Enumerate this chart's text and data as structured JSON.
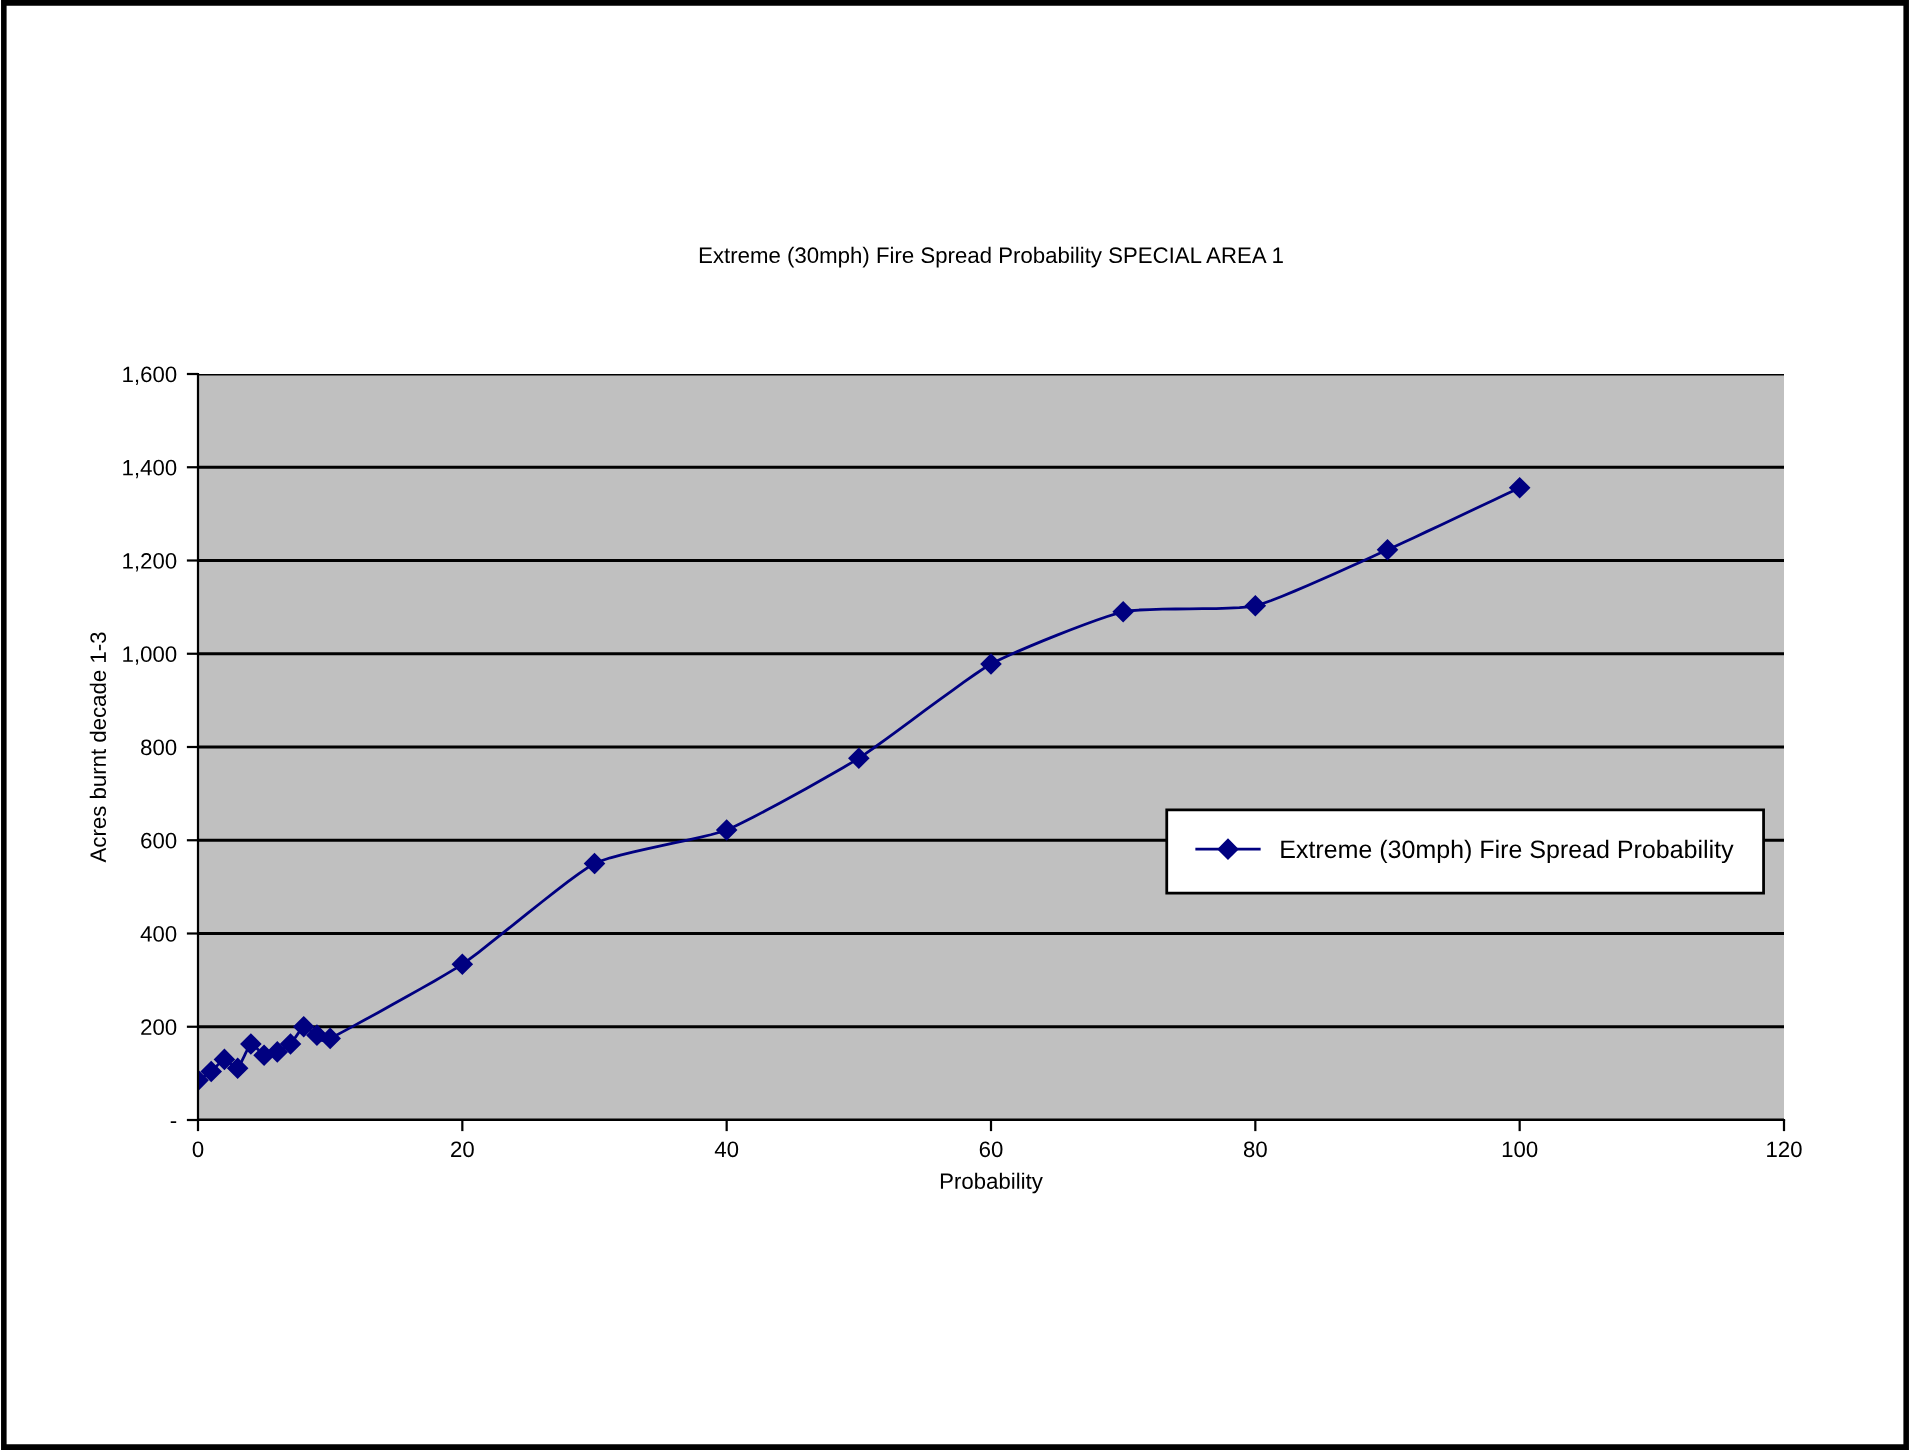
{
  "chart_data": {
    "type": "line",
    "title": "Extreme (30mph) Fire Spread Probability SPECIAL AREA 1",
    "xlabel": "Probability",
    "ylabel": "Acres burnt decade 1-3",
    "x": [
      0,
      1,
      2,
      3,
      4,
      5,
      6,
      7,
      8,
      9,
      10,
      20,
      30,
      40,
      50,
      60,
      70,
      80,
      90,
      100
    ],
    "series": [
      {
        "name": "Extreme (30mph) Fire Spread Probability",
        "color": "#000080",
        "values": [
          85,
          104,
          130,
          111,
          163,
          139,
          146,
          163,
          200,
          182,
          175,
          334,
          550,
          622,
          776,
          978,
          1090,
          1103,
          1223,
          1356
        ]
      }
    ],
    "xlim": [
      0,
      120
    ],
    "xticks": [
      0,
      20,
      40,
      60,
      80,
      100,
      120
    ],
    "ylim": [
      0,
      1600
    ],
    "yticks": [
      {
        "value": 0,
        "label": "-"
      },
      {
        "value": 200,
        "label": "200"
      },
      {
        "value": 400,
        "label": "400"
      },
      {
        "value": 600,
        "label": "600"
      },
      {
        "value": 800,
        "label": "800"
      },
      {
        "value": 1000,
        "label": "1,000"
      },
      {
        "value": 1200,
        "label": "1,200"
      },
      {
        "value": 1400,
        "label": "1,400"
      },
      {
        "value": 1600,
        "label": "1,600"
      }
    ],
    "grid": "y",
    "legend": "right",
    "marker": "diamond",
    "line_style": "solid"
  }
}
